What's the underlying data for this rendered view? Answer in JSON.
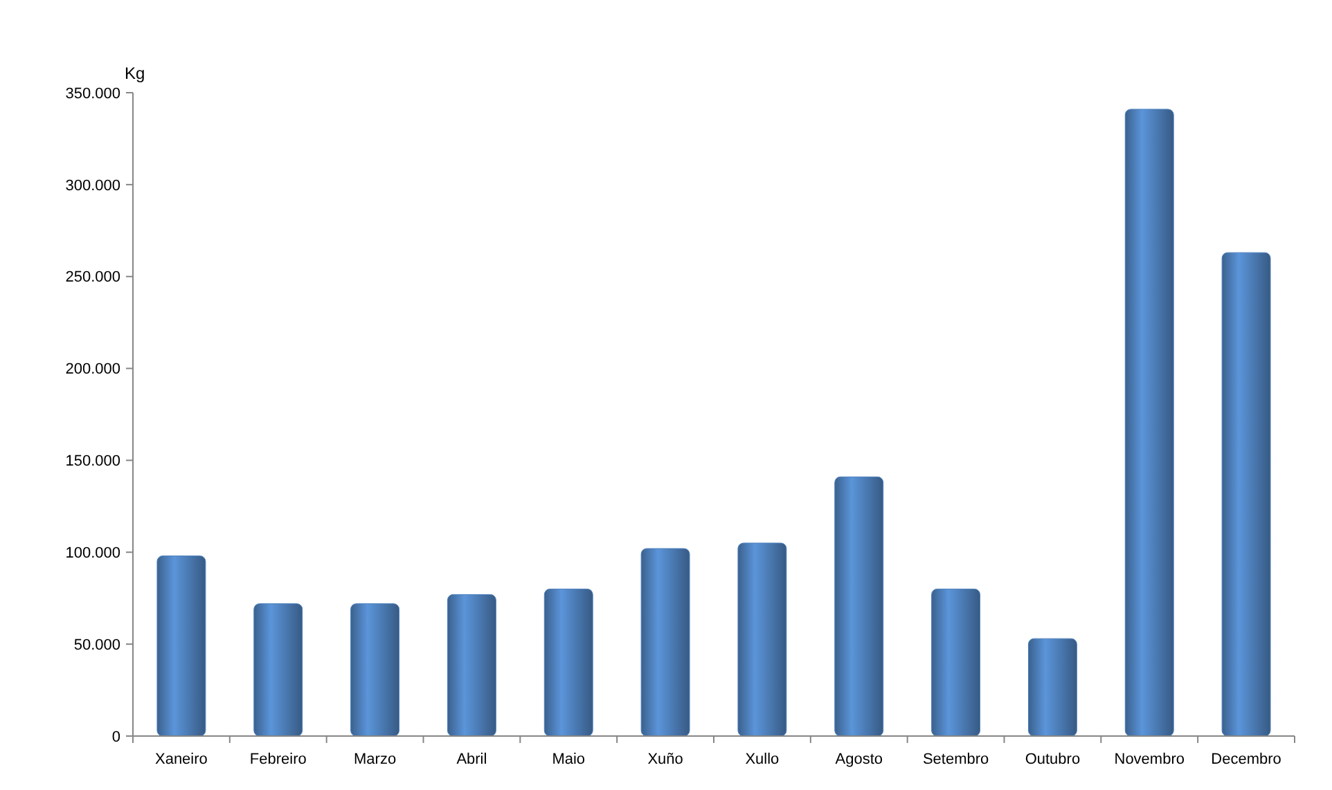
{
  "chart_data": {
    "type": "bar",
    "ylabel": "Kg",
    "categories": [
      "Xaneiro",
      "Febreiro",
      "Marzo",
      "Abril",
      "Maio",
      "Xuño",
      "Xullo",
      "Agosto",
      "Setembro",
      "Outubro",
      "Novembro",
      "Decembro"
    ],
    "values": [
      98000,
      72000,
      72000,
      77000,
      80000,
      102000,
      105000,
      141000,
      80000,
      53000,
      341000,
      263000
    ],
    "color": "#4f81bd",
    "ylim": [
      0,
      350000
    ],
    "yticks": [
      0,
      {
        "value": 50000,
        "label": "50.000"
      },
      {
        "value": 100000,
        "label": "100.000"
      },
      {
        "value": 150000,
        "label": "150.000"
      },
      {
        "value": 200000,
        "label": "200.000"
      },
      {
        "value": 250000,
        "label": "250.000"
      },
      {
        "value": 300000,
        "label": "300.000"
      },
      {
        "value": 350000,
        "label": "350.000"
      }
    ],
    "grid": false
  }
}
